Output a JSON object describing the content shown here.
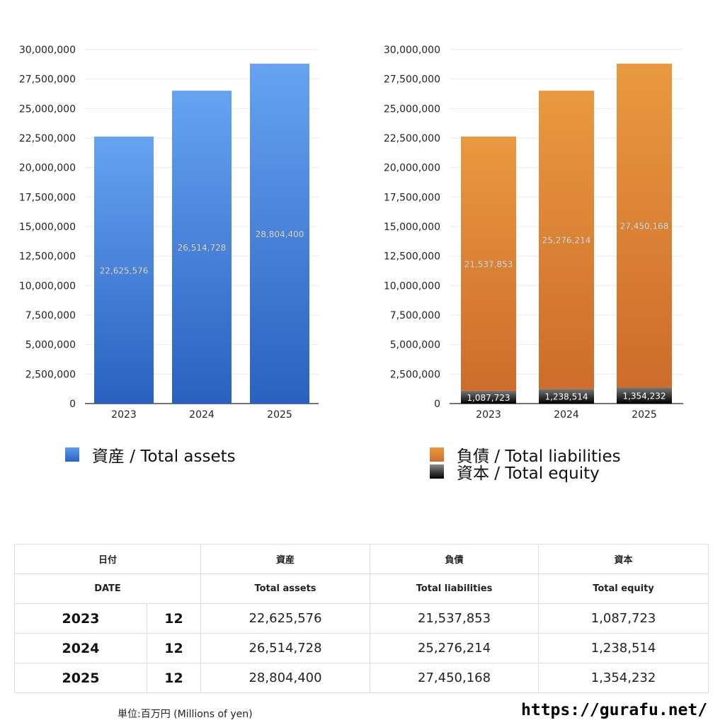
{
  "chart_data": [
    {
      "type": "bar",
      "title": "",
      "categories": [
        "2023",
        "2024",
        "2025"
      ],
      "series": [
        {
          "name": "資産 / Total assets",
          "values": [
            22625576,
            26514728,
            28804400
          ],
          "color": "#3f7fdc"
        }
      ],
      "value_labels": [
        "22,625,576",
        "26,514,728",
        "28,804,400"
      ],
      "yticks": [
        "0",
        "2,500,000",
        "5,000,000",
        "7,500,000",
        "10,000,000",
        "12,500,000",
        "15,000,000",
        "17,500,000",
        "20,000,000",
        "22,500,000",
        "25,000,000",
        "27,500,000",
        "30,000,000"
      ],
      "ylim": [
        0,
        30000000
      ],
      "legend": [
        "資産 / Total assets"
      ]
    },
    {
      "type": "bar",
      "stacked": true,
      "title": "",
      "categories": [
        "2023",
        "2024",
        "2025"
      ],
      "series": [
        {
          "name": "資本 / Total equity",
          "values": [
            1087723,
            1238514,
            1354232
          ],
          "color": "#000000"
        },
        {
          "name": "負債 / Total liabilities",
          "values": [
            21537853,
            25276214,
            27450168
          ],
          "color": "#dc8238"
        }
      ],
      "value_labels": {
        "equity": [
          "1,087,723",
          "1,238,514",
          "1,354,232"
        ],
        "liabilities": [
          "21,537,853",
          "25,276,214",
          "27,450,168"
        ]
      },
      "yticks": [
        "0",
        "2,500,000",
        "5,000,000",
        "7,500,000",
        "10,000,000",
        "12,500,000",
        "15,000,000",
        "17,500,000",
        "20,000,000",
        "22,500,000",
        "25,000,000",
        "27,500,000",
        "30,000,000"
      ],
      "ylim": [
        0,
        30000000
      ],
      "legend": [
        "負債 / Total liabilities",
        "資本 / Total equity"
      ]
    }
  ],
  "legend_left": {
    "assets": "資産 / Total assets"
  },
  "legend_right": {
    "liabilities": "負債 / Total liabilities",
    "equity": "資本 / Total equity"
  },
  "table": {
    "header_jp": [
      "日付",
      "資産",
      "負債",
      "資本"
    ],
    "header_en": [
      "DATE",
      "Total assets",
      "Total liabilities",
      "Total equity"
    ],
    "rows": [
      {
        "year": "2023",
        "month": "12",
        "assets": "22,625,576",
        "liabilities": "21,537,853",
        "equity": "1,087,723"
      },
      {
        "year": "2024",
        "month": "12",
        "assets": "26,514,728",
        "liabilities": "25,276,214",
        "equity": "1,238,514"
      },
      {
        "year": "2025",
        "month": "12",
        "assets": "28,804,400",
        "liabilities": "27,450,168",
        "equity": "1,354,232"
      }
    ]
  },
  "footer": {
    "unit": "単位:百万円 (Millions of yen)",
    "site": "https://gurafu.net/"
  }
}
